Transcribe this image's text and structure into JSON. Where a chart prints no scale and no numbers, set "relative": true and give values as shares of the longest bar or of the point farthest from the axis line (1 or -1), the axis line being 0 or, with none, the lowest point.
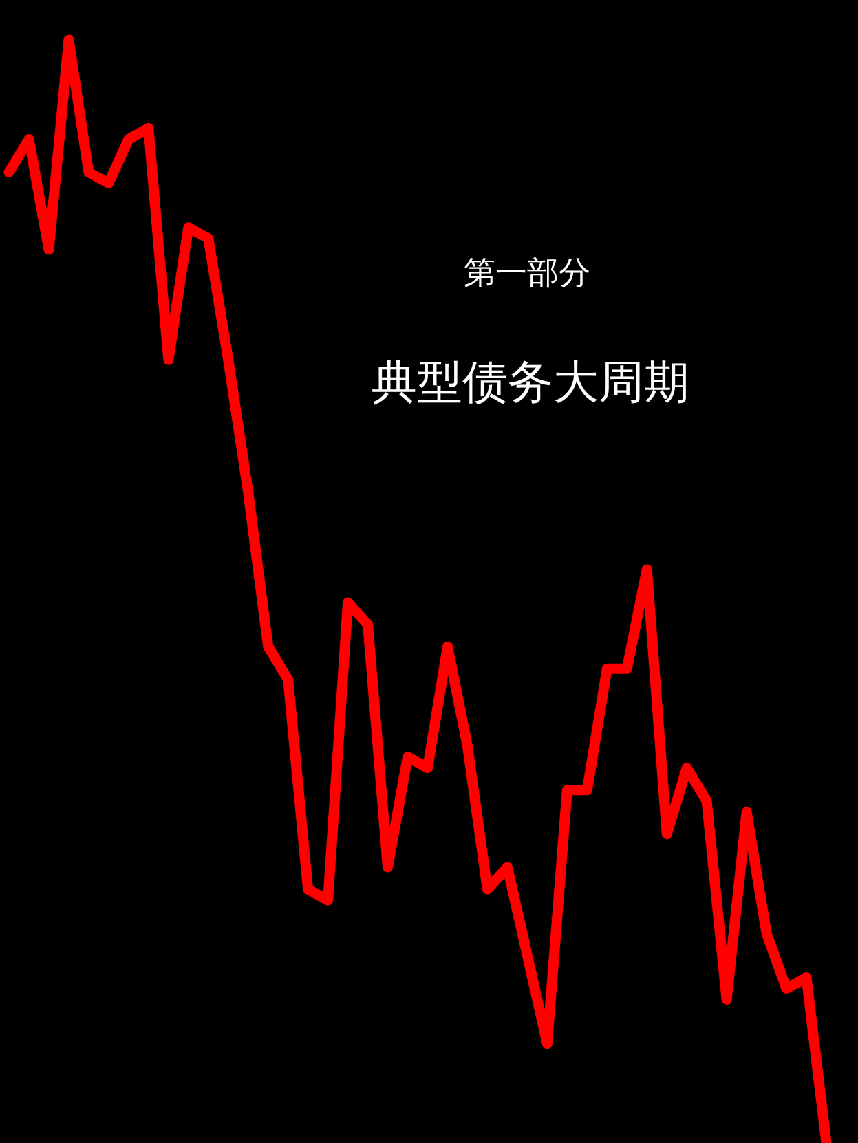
{
  "chart_data": {
    "type": "line",
    "title": "典型债务大周期",
    "subtitle": "第一部分",
    "relative": true,
    "categories": [
      null,
      null,
      null,
      null,
      null,
      null,
      null,
      null,
      null,
      null,
      null,
      null,
      null,
      null,
      null,
      null,
      null,
      null,
      null,
      null,
      null,
      null,
      null,
      null,
      null,
      null,
      null,
      null,
      null,
      null,
      null,
      null,
      null,
      null,
      null,
      null,
      null,
      null,
      null,
      null,
      null,
      null
    ],
    "series": [
      {
        "color": "#ff0000",
        "values": [
          0.88,
          0.91,
          0.81,
          1.0,
          0.88,
          0.87,
          0.91,
          0.92,
          0.71,
          0.83,
          0.82,
          0.71,
          0.59,
          0.45,
          0.42,
          0.23,
          0.22,
          0.49,
          0.47,
          0.25,
          0.35,
          0.34,
          0.45,
          0.36,
          0.23,
          0.25,
          0.17,
          0.09,
          0.32,
          0.32,
          0.43,
          0.43,
          0.52,
          0.28,
          0.34,
          0.31,
          0.13,
          0.3,
          0.19,
          0.14,
          0.15,
          0.0
        ]
      }
    ]
  }
}
